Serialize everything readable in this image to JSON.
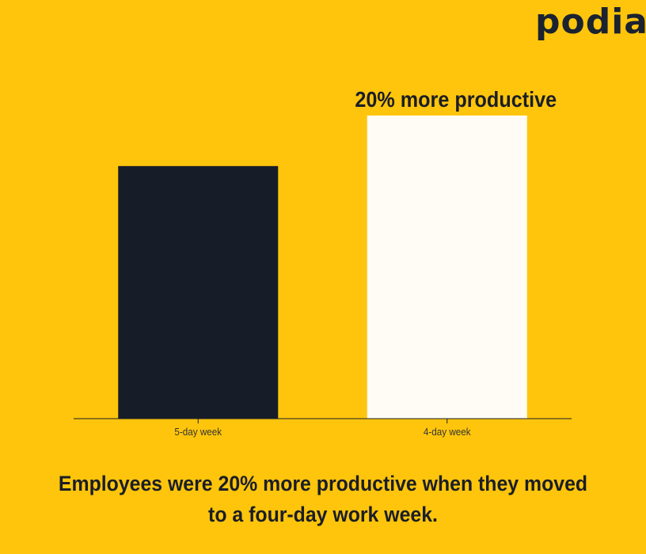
{
  "brand": {
    "logo_text": "podia"
  },
  "chart_data": {
    "type": "bar",
    "categories": [
      "5-day week",
      "4-day week"
    ],
    "values": [
      100,
      120
    ],
    "ylim": [
      0,
      120
    ],
    "annotations": [
      {
        "category": "4-day week",
        "text": "20% more productive"
      }
    ],
    "colors": [
      "#171D28",
      "#FFFCF5"
    ],
    "grid": false,
    "xlabel": "",
    "ylabel": ""
  },
  "caption": "Employees were 20% more productive when they moved to a four-day work week.",
  "colors": {
    "background": "#FFC50C",
    "text": "#1B1E26"
  }
}
